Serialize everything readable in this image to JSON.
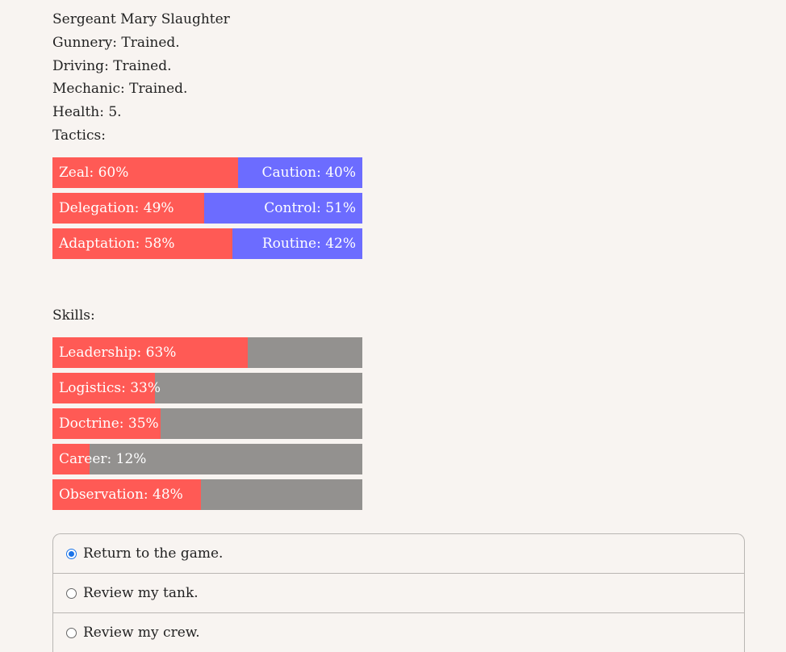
{
  "character": {
    "name": "Sergeant Mary Slaughter",
    "gunnery": "Gunnery: Trained.",
    "driving": "Driving: Trained.",
    "mechanic": "Mechanic: Trained.",
    "health": "Health: 5.",
    "tactics_heading": "Tactics:",
    "skills_heading": "Skills:"
  },
  "tactics": [
    {
      "left_label": "Zeal: 60%",
      "right_label": "Caution: 40%",
      "left_pct": 60
    },
    {
      "left_label": "Delegation: 49%",
      "right_label": "Control: 51%",
      "left_pct": 49
    },
    {
      "left_label": "Adaptation: 58%",
      "right_label": "Routine: 42%",
      "left_pct": 58
    }
  ],
  "skills": [
    {
      "label": "Leadership: 63%",
      "pct": 63
    },
    {
      "label": "Logistics: 33%",
      "pct": 33
    },
    {
      "label": "Doctrine: 35%",
      "pct": 35
    },
    {
      "label": "Career: 12%",
      "pct": 12
    },
    {
      "label": "Observation: 48%",
      "pct": 48
    }
  ],
  "choices": [
    {
      "label": "Return to the game.",
      "selected": true
    },
    {
      "label": "Review my tank.",
      "selected": false
    },
    {
      "label": "Review my crew.",
      "selected": false
    }
  ],
  "colors": {
    "primary_bar": "#ff5a55",
    "opposed_bar": "#6c6cff",
    "empty_bar": "#93918f",
    "radio_accent": "#1a73e8"
  }
}
